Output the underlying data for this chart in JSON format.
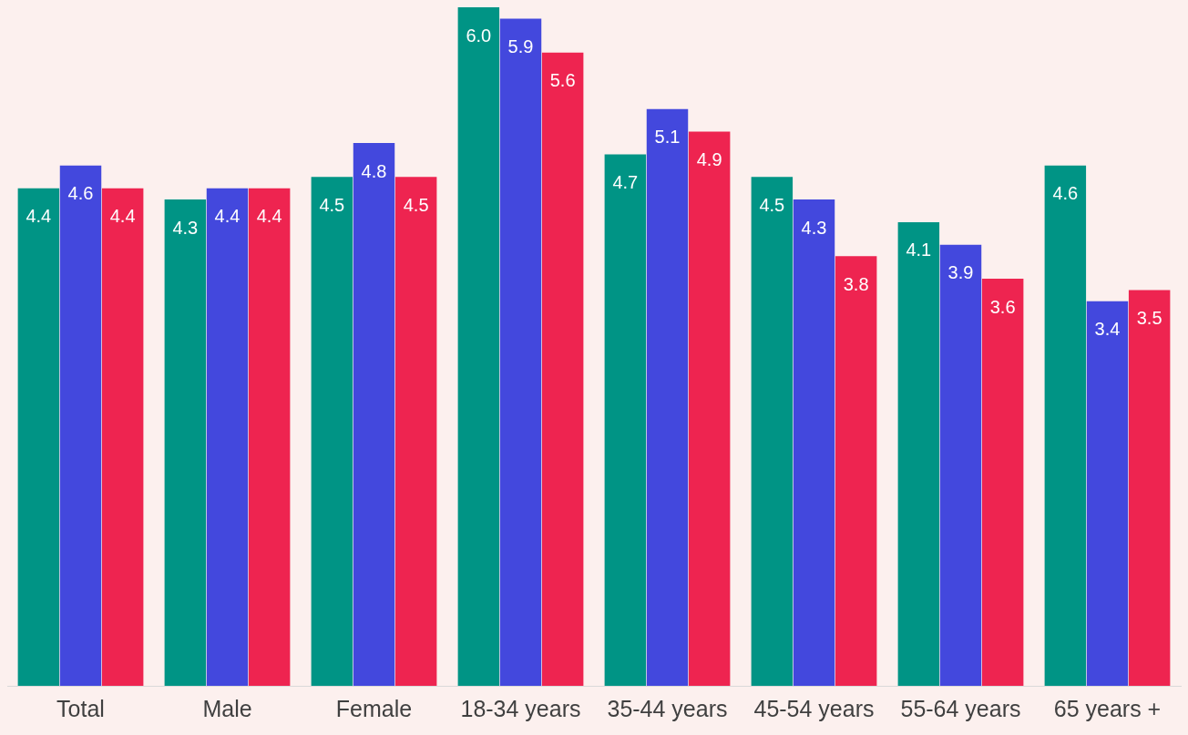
{
  "chart_data": {
    "type": "bar",
    "categories": [
      "Total",
      "Male",
      "Female",
      "18-34 years",
      "35-44 years",
      "45-54 years",
      "55-64 years",
      "65 years +"
    ],
    "series": [
      {
        "color": "#009485",
        "values": [
          4.4,
          4.3,
          4.5,
          6.0,
          4.7,
          4.5,
          4.1,
          4.6
        ],
        "value_labels": [
          "4.4",
          "4.3",
          "4.5",
          "6.0",
          "4.7",
          "4.5",
          "4.1",
          "4.6"
        ]
      },
      {
        "color": "#4348dd",
        "values": [
          4.6,
          4.4,
          4.8,
          5.9,
          5.1,
          4.3,
          3.9,
          3.4
        ],
        "value_labels": [
          "4.6",
          "4.4",
          "4.8",
          "5.9",
          "5.1",
          "4.3",
          "3.9",
          "3.4"
        ]
      },
      {
        "color": "#ee2450",
        "values": [
          4.4,
          4.4,
          4.5,
          5.6,
          4.9,
          3.8,
          3.6,
          3.5
        ],
        "value_labels": [
          "4.4",
          "4.4",
          "4.5",
          "5.6",
          "4.9",
          "3.8",
          "3.6",
          "3.5"
        ]
      }
    ],
    "ylim": [
      0,
      6
    ],
    "grid": false,
    "legend": false
  }
}
